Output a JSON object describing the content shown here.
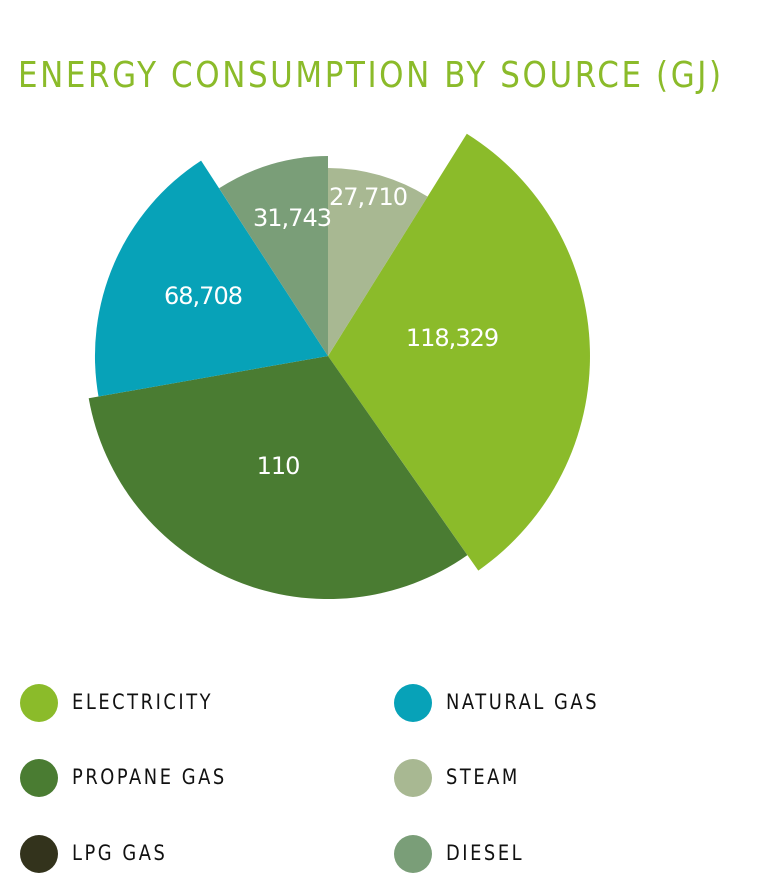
{
  "chart_data": {
    "type": "pie",
    "title": "ENERGY CONSUMPTION BY SOURCE (GJ)",
    "title_color": "#8bbb2a",
    "label_color": "#ffffff",
    "slices": [
      {
        "name": "ELECTRICITY",
        "value": 118329,
        "label": "118,329",
        "color": "#8bbb2a",
        "exploded": true
      },
      {
        "name": "PROPANE GAS",
        "value": 110,
        "label": "110",
        "color": "#4a7c32"
      },
      {
        "name": "NATURAL GAS",
        "value": 68708,
        "label": "68,708",
        "color": "#07a2b8"
      },
      {
        "name": "DIESEL",
        "value": 31743,
        "label": "31,743",
        "color": "#7a9e78"
      },
      {
        "name": "STEAM",
        "value": 27710,
        "label": "27,710",
        "color": "#a8b892"
      }
    ]
  },
  "legend": [
    {
      "label": "ELECTRICITY",
      "color": "#8bbb2a"
    },
    {
      "label": "NATURAL GAS",
      "color": "#07a2b8"
    },
    {
      "label": "PROPANE GAS",
      "color": "#4a7c32"
    },
    {
      "label": "STEAM",
      "color": "#a8b892"
    },
    {
      "label": "LPG GAS",
      "color": "#33331c"
    },
    {
      "label": "DIESEL",
      "color": "#7a9e78"
    }
  ]
}
